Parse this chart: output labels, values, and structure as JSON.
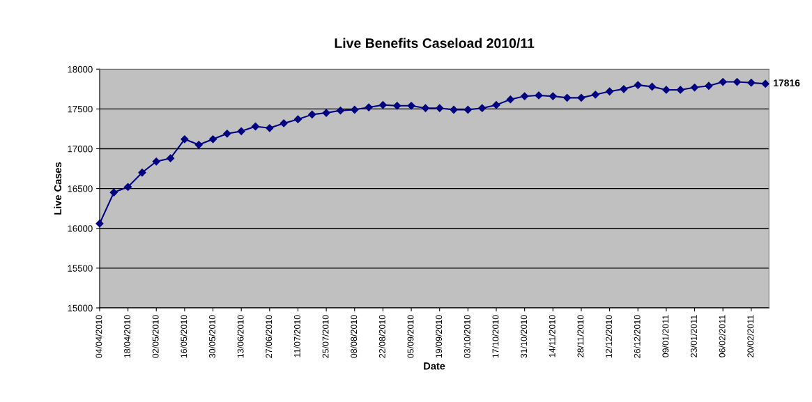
{
  "chart_data": {
    "type": "line",
    "title": "Live Benefits Caseload 2010/11",
    "xlabel": "Date",
    "ylabel": "Live Cases",
    "categories": [
      "04/04/2010",
      null,
      "18/04/2010",
      null,
      "02/05/2010",
      null,
      "16/05/2010",
      null,
      "30/05/2010",
      null,
      "13/06/2010",
      null,
      "27/06/2010",
      null,
      "11/07/2010",
      null,
      "25/07/2010",
      null,
      "08/08/2010",
      null,
      "22/08/2010",
      null,
      "05/09/2010",
      null,
      "19/09/2010",
      null,
      "03/10/2010",
      null,
      "17/10/2010",
      null,
      "31/10/2010",
      null,
      "14/11/2010",
      null,
      "28/11/2010",
      null,
      "12/12/2010",
      null,
      "26/12/2010",
      null,
      "09/01/2011",
      null,
      "23/01/2011",
      null,
      "06/02/2011",
      null,
      "20/02/2011",
      null
    ],
    "series": [
      {
        "color": "#000080",
        "values": [
          16060,
          16450,
          16520,
          16700,
          16840,
          16880,
          17120,
          17050,
          17120,
          17190,
          17220,
          17280,
          17260,
          17320,
          17370,
          17430,
          17450,
          17480,
          17490,
          17520,
          17550,
          17540,
          17540,
          17510,
          17510,
          17490,
          17490,
          17510,
          17550,
          17620,
          17660,
          17670,
          17660,
          17640,
          17640,
          17680,
          17720,
          17750,
          17800,
          17780,
          17740,
          17740,
          17770,
          17790,
          17840,
          17840,
          17830,
          17816
        ],
        "value_labels": [
          null,
          null,
          null,
          null,
          null,
          null,
          null,
          null,
          null,
          null,
          null,
          null,
          null,
          null,
          null,
          null,
          null,
          null,
          null,
          null,
          null,
          null,
          null,
          null,
          null,
          null,
          null,
          null,
          null,
          null,
          null,
          null,
          null,
          null,
          null,
          null,
          null,
          null,
          null,
          null,
          null,
          null,
          null,
          null,
          null,
          null,
          null,
          "17816"
        ]
      }
    ],
    "ylim": [
      15000,
      18000
    ],
    "yticks": [
      15000,
      15500,
      16000,
      16500,
      17000,
      17500,
      18000
    ],
    "grid": "y",
    "marker": "diamond",
    "line_style": "solid"
  }
}
